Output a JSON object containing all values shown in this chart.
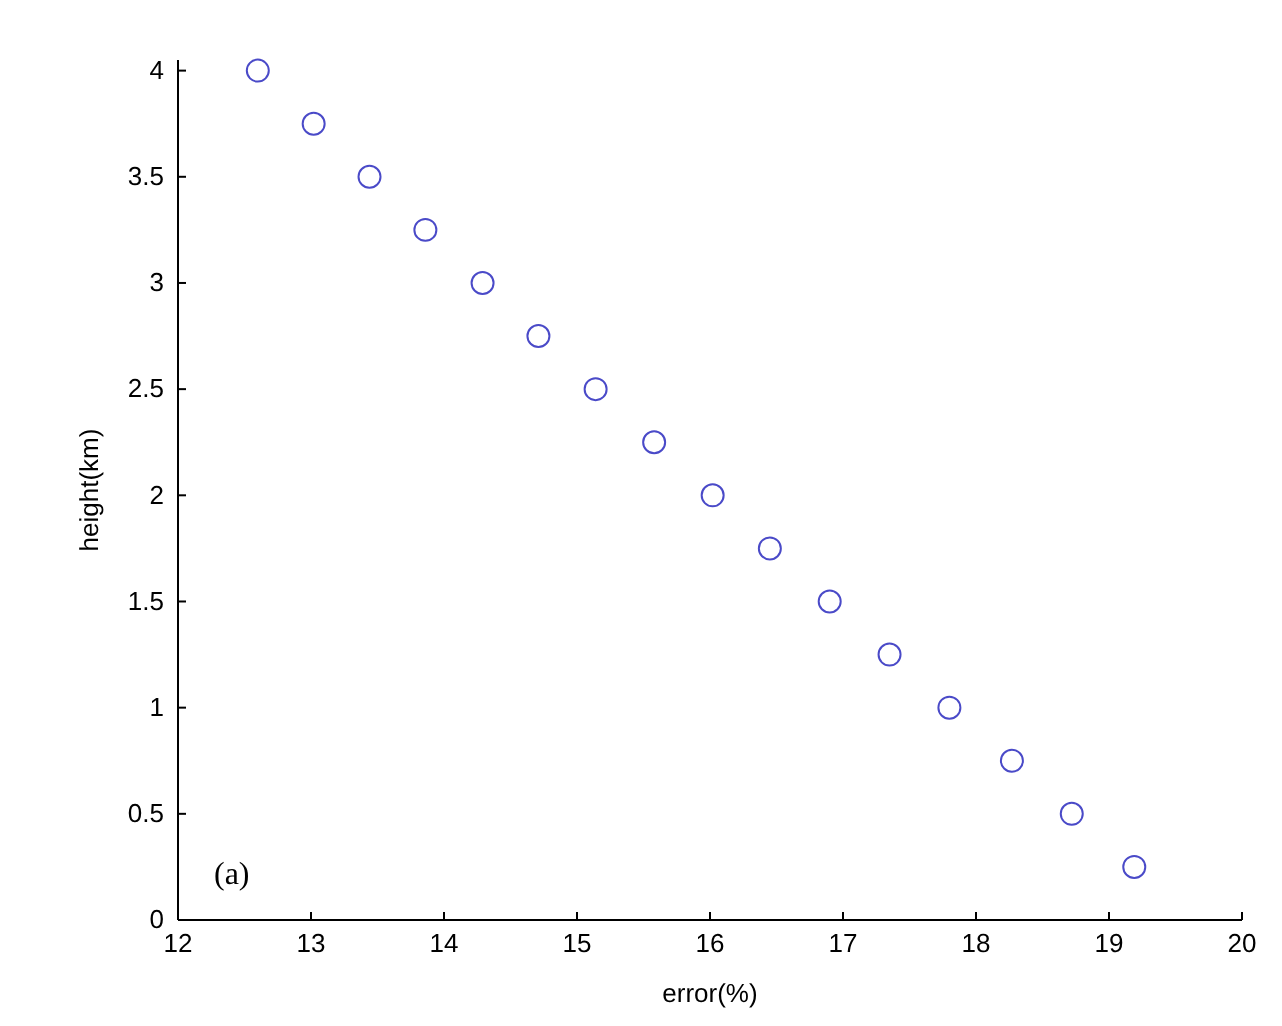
{
  "chart_data": {
    "type": "scatter",
    "xlabel": "error(%)",
    "ylabel": "height(km)",
    "annotations": [
      "(a)"
    ],
    "x": [
      12.6,
      13.02,
      13.44,
      13.86,
      14.29,
      14.71,
      15.14,
      15.58,
      16.02,
      16.45,
      16.9,
      17.35,
      17.8,
      18.27,
      18.72,
      19.19
    ],
    "series": [
      {
        "color": "#4a4ac8",
        "values": [
          4,
          3.75,
          3.5,
          3.25,
          3,
          2.75,
          2.5,
          2.25,
          2,
          1.75,
          1.5,
          1.25,
          1,
          0.75,
          0.5,
          0.25
        ]
      }
    ],
    "xlim": [
      12,
      20
    ],
    "xticks": [
      12,
      13,
      14,
      15,
      16,
      17,
      18,
      19,
      20
    ],
    "ylim": [
      0,
      4.05
    ],
    "yticks": [
      0,
      0.5,
      1,
      1.5,
      2,
      2.5,
      3,
      3.5,
      4
    ],
    "marker": "circle",
    "grid": false
  }
}
